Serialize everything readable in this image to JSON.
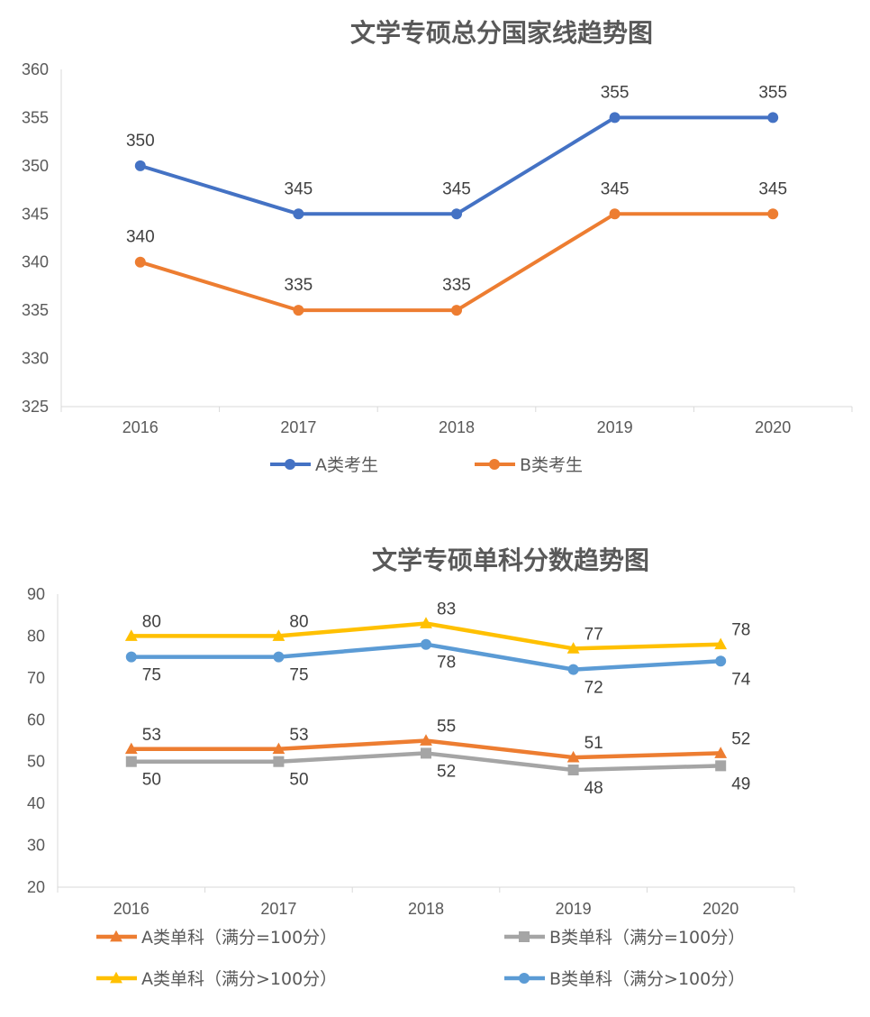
{
  "chart_data": [
    {
      "type": "line",
      "title": "文学专硕总分国家线趋势图",
      "categories": [
        "2016",
        "2017",
        "2018",
        "2019",
        "2020"
      ],
      "ylim": [
        325,
        360
      ],
      "yticks": [
        325,
        330,
        335,
        340,
        345,
        350,
        355,
        360
      ],
      "grid": false,
      "legend": "bottom",
      "series": [
        {
          "name": "A类考生",
          "values": [
            350,
            345,
            345,
            355,
            355
          ],
          "color": "#4472C4",
          "marker": "circle"
        },
        {
          "name": "B类考生",
          "values": [
            340,
            335,
            335,
            345,
            345
          ],
          "color": "#ED7D31",
          "marker": "circle"
        }
      ]
    },
    {
      "type": "line",
      "title": "文学专硕单科分数趋势图",
      "categories": [
        "2016",
        "2017",
        "2018",
        "2019",
        "2020"
      ],
      "ylim": [
        20,
        90
      ],
      "yticks": [
        20,
        30,
        40,
        50,
        60,
        70,
        80,
        90
      ],
      "grid": false,
      "legend": "bottom",
      "series": [
        {
          "name": "A类单科（满分=100分）",
          "values": [
            53,
            53,
            55,
            51,
            52
          ],
          "color": "#ED7D31",
          "marker": "triangle"
        },
        {
          "name": "B类单科（满分=100分）",
          "values": [
            50,
            50,
            52,
            48,
            49
          ],
          "color": "#A5A5A5",
          "marker": "square"
        },
        {
          "name": "A类单科（满分>100分）",
          "values": [
            80,
            80,
            83,
            77,
            78
          ],
          "color": "#FFC000",
          "marker": "triangle"
        },
        {
          "name": "B类单科（满分>100分）",
          "values": [
            75,
            75,
            78,
            72,
            74
          ],
          "color": "#5B9BD5",
          "marker": "circle"
        }
      ]
    }
  ]
}
